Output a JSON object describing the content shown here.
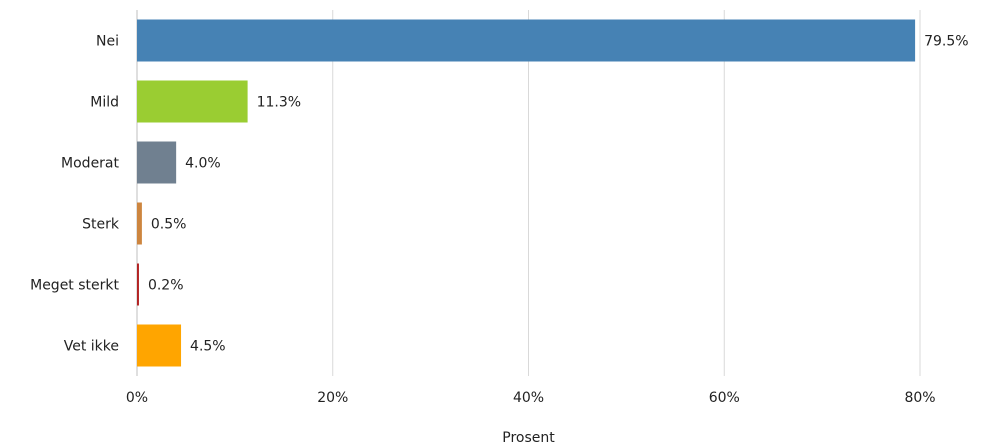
{
  "chart_data": {
    "type": "bar",
    "orientation": "horizontal",
    "title": "",
    "xlabel": "Prosent",
    "ylabel": "",
    "xlim": [
      0,
      85
    ],
    "x_ticks": [
      0,
      20,
      40,
      60,
      80
    ],
    "x_tick_labels": [
      "0%",
      "20%",
      "40%",
      "60%",
      "80%"
    ],
    "grid": "vertical",
    "legend": "none",
    "categories": [
      "Nei",
      "Mild",
      "Moderat",
      "Sterk",
      "Meget sterkt",
      "Vet ikke"
    ],
    "values": [
      79.5,
      11.3,
      4.0,
      0.5,
      0.2,
      4.5
    ],
    "data_labels": [
      "79.5%",
      "11.3%",
      "4.0%",
      "0.5%",
      "0.2%",
      "4.5%"
    ],
    "colors": [
      "#4682b4",
      "#9acd32",
      "#708090",
      "#cd853f",
      "#b22222",
      "#ffa500"
    ]
  }
}
